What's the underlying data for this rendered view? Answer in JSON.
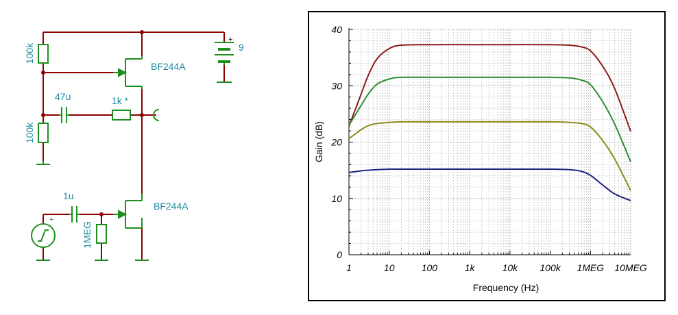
{
  "schematic": {
    "components": {
      "r_top": "100k",
      "r_bottom": "100k",
      "c_coupling": "47u",
      "r_load": "1k *",
      "q_upper": "BF244A",
      "q_lower": "BF244A",
      "c_input": "1u",
      "r_gate": "1MEG",
      "battery": "9",
      "battery_plus": "+",
      "source_plus": "+"
    },
    "colors": {
      "wire": "#8b0000",
      "component": "#1e8f1e",
      "label": "#1a8a9a",
      "ground": "#1e8f1e"
    }
  },
  "chart_data": {
    "type": "line",
    "xlabel": "Frequency (Hz)",
    "ylabel": "Gain (dB)",
    "xscale": "log",
    "xlim": [
      1,
      10000000
    ],
    "ylim": [
      0,
      40
    ],
    "x_tick_labels": [
      "1",
      "10",
      "100",
      "1k",
      "10k",
      "100k",
      "1MEG",
      "10MEG"
    ],
    "y_tick_labels": [
      "0",
      "10",
      "20",
      "30",
      "40"
    ],
    "grid": true,
    "series": [
      {
        "color": "#8b1a1a",
        "x": [
          1,
          2,
          3,
          5,
          10,
          20,
          100,
          1000,
          10000,
          100000,
          300000,
          600000,
          1000000,
          2000000,
          4000000,
          10000000
        ],
        "y": [
          22.8,
          28.5,
          31.8,
          34.8,
          36.6,
          37.2,
          37.3,
          37.3,
          37.3,
          37.3,
          37.2,
          36.9,
          36.2,
          33.5,
          29.5,
          21.9
        ]
      },
      {
        "color": "#2e8b2e",
        "x": [
          1,
          2,
          3,
          5,
          10,
          20,
          100,
          1000,
          10000,
          100000,
          300000,
          600000,
          1000000,
          2000000,
          4000000,
          10000000
        ],
        "y": [
          23.0,
          26.5,
          28.5,
          30.3,
          31.2,
          31.5,
          31.5,
          31.5,
          31.5,
          31.5,
          31.4,
          31.0,
          30.2,
          27.2,
          23.2,
          16.5
        ]
      },
      {
        "color": "#8b8b1a",
        "x": [
          1,
          2,
          3,
          5,
          10,
          20,
          100,
          1000,
          10000,
          100000,
          300000,
          600000,
          1000000,
          2000000,
          4000000,
          10000000
        ],
        "y": [
          20.6,
          22.2,
          22.9,
          23.3,
          23.5,
          23.6,
          23.6,
          23.6,
          23.6,
          23.6,
          23.5,
          23.3,
          22.7,
          20.3,
          17.0,
          11.4
        ]
      },
      {
        "color": "#1a237e",
        "x": [
          1,
          2,
          3,
          5,
          10,
          20,
          100,
          1000,
          10000,
          100000,
          300000,
          600000,
          1000000,
          2000000,
          4000000,
          10000000
        ],
        "y": [
          14.6,
          14.9,
          15.0,
          15.1,
          15.2,
          15.2,
          15.2,
          15.2,
          15.2,
          15.2,
          15.1,
          14.8,
          14.1,
          12.4,
          10.8,
          9.6
        ]
      }
    ]
  }
}
